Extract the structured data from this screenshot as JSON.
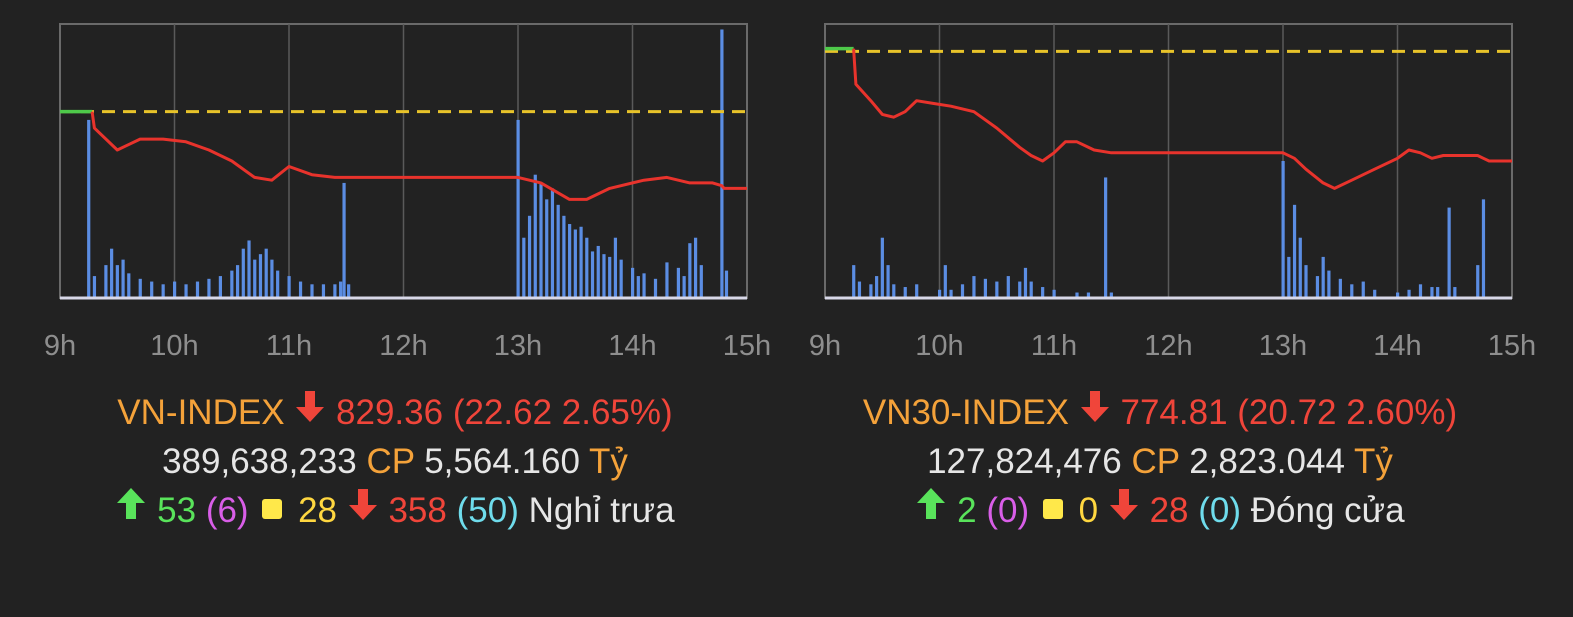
{
  "colors": {
    "background": "#222222",
    "price_line": "#e8332c",
    "reference_line": "#e8c32a",
    "opening_segment": "#4ec94a",
    "volume_bars": "#5b8de3",
    "grid": "#6a6a6a",
    "up": "#59e35b",
    "down": "#f0453a",
    "index_name": "#f4a23a"
  },
  "panels": [
    {
      "index": {
        "name": "VN-INDEX",
        "value": "829.36",
        "change": "(22.62 2.65%)",
        "volume": "389,638,233",
        "volume_unit": "CP",
        "turnover": "5,564.160",
        "turnover_unit": "Tỷ",
        "advancers": "53",
        "advancers_ceiling": "(6)",
        "unchanged": "28",
        "decliners": "358",
        "decliners_floor": "(50)",
        "status": "Nghỉ trưa"
      },
      "chart_data": {
        "type": "line",
        "x_ticks": [
          "9h",
          "10h",
          "11h",
          "12h",
          "13h",
          "14h",
          "15h"
        ],
        "x_range": [
          9,
          15
        ],
        "y_range_relative": [
          0,
          1
        ],
        "grid": true,
        "reference": 0.68,
        "price": [
          [
            9.0,
            0.68
          ],
          [
            9.28,
            0.68
          ],
          [
            9.3,
            0.62
          ],
          [
            9.5,
            0.54
          ],
          [
            9.7,
            0.58
          ],
          [
            9.9,
            0.58
          ],
          [
            10.1,
            0.57
          ],
          [
            10.3,
            0.54
          ],
          [
            10.5,
            0.5
          ],
          [
            10.7,
            0.44
          ],
          [
            10.85,
            0.43
          ],
          [
            11.0,
            0.48
          ],
          [
            11.2,
            0.45
          ],
          [
            11.4,
            0.44
          ],
          [
            11.5,
            0.44
          ],
          [
            13.0,
            0.44
          ],
          [
            13.2,
            0.42
          ],
          [
            13.45,
            0.36
          ],
          [
            13.6,
            0.36
          ],
          [
            13.8,
            0.4
          ],
          [
            14.1,
            0.43
          ],
          [
            14.3,
            0.44
          ],
          [
            14.5,
            0.42
          ],
          [
            14.7,
            0.42
          ],
          [
            14.78,
            0.41
          ],
          [
            14.8,
            0.4
          ],
          [
            15.0,
            0.4
          ]
        ],
        "volume": [
          [
            9.25,
            0.65
          ],
          [
            9.3,
            0.08
          ],
          [
            9.4,
            0.12
          ],
          [
            9.45,
            0.18
          ],
          [
            9.5,
            0.12
          ],
          [
            9.55,
            0.14
          ],
          [
            9.6,
            0.09
          ],
          [
            9.7,
            0.07
          ],
          [
            9.8,
            0.06
          ],
          [
            9.9,
            0.05
          ],
          [
            10.0,
            0.06
          ],
          [
            10.1,
            0.05
          ],
          [
            10.2,
            0.06
          ],
          [
            10.3,
            0.07
          ],
          [
            10.4,
            0.08
          ],
          [
            10.5,
            0.1
          ],
          [
            10.55,
            0.12
          ],
          [
            10.6,
            0.18
          ],
          [
            10.65,
            0.21
          ],
          [
            10.7,
            0.14
          ],
          [
            10.75,
            0.16
          ],
          [
            10.8,
            0.18
          ],
          [
            10.85,
            0.14
          ],
          [
            10.9,
            0.1
          ],
          [
            11.0,
            0.08
          ],
          [
            11.1,
            0.06
          ],
          [
            11.2,
            0.05
          ],
          [
            11.3,
            0.05
          ],
          [
            11.4,
            0.05
          ],
          [
            11.45,
            0.06
          ],
          [
            11.48,
            0.42
          ],
          [
            11.52,
            0.05
          ],
          [
            13.0,
            0.65
          ],
          [
            13.05,
            0.22
          ],
          [
            13.1,
            0.3
          ],
          [
            13.15,
            0.45
          ],
          [
            13.2,
            0.42
          ],
          [
            13.25,
            0.36
          ],
          [
            13.3,
            0.4
          ],
          [
            13.35,
            0.34
          ],
          [
            13.4,
            0.3
          ],
          [
            13.45,
            0.27
          ],
          [
            13.5,
            0.25
          ],
          [
            13.55,
            0.26
          ],
          [
            13.6,
            0.22
          ],
          [
            13.65,
            0.17
          ],
          [
            13.7,
            0.19
          ],
          [
            13.75,
            0.16
          ],
          [
            13.8,
            0.15
          ],
          [
            13.85,
            0.22
          ],
          [
            13.9,
            0.14
          ],
          [
            14.0,
            0.11
          ],
          [
            14.05,
            0.08
          ],
          [
            14.1,
            0.09
          ],
          [
            14.2,
            0.07
          ],
          [
            14.3,
            0.13
          ],
          [
            14.4,
            0.11
          ],
          [
            14.45,
            0.08
          ],
          [
            14.5,
            0.2
          ],
          [
            14.55,
            0.22
          ],
          [
            14.6,
            0.12
          ],
          [
            14.78,
            0.98
          ],
          [
            14.82,
            0.1
          ]
        ]
      }
    },
    {
      "index": {
        "name": "VN30-INDEX",
        "value": "774.81",
        "change": "(20.72 2.60%)",
        "volume": "127,824,476",
        "volume_unit": "CP",
        "turnover": "2,823.044",
        "turnover_unit": "Tỷ",
        "advancers": "2",
        "advancers_ceiling": "(0)",
        "unchanged": "0",
        "decliners": "28",
        "decliners_floor": "(0)",
        "status": "Đóng cửa"
      },
      "chart_data": {
        "type": "line",
        "x_ticks": [
          "9h",
          "10h",
          "11h",
          "12h",
          "13h",
          "14h",
          "15h"
        ],
        "x_range": [
          9,
          15
        ],
        "y_range_relative": [
          0,
          1
        ],
        "grid": true,
        "reference": 0.9,
        "price": [
          [
            9.0,
            0.91
          ],
          [
            9.25,
            0.91
          ],
          [
            9.27,
            0.78
          ],
          [
            9.4,
            0.72
          ],
          [
            9.5,
            0.67
          ],
          [
            9.6,
            0.66
          ],
          [
            9.7,
            0.68
          ],
          [
            9.8,
            0.72
          ],
          [
            9.95,
            0.71
          ],
          [
            10.1,
            0.7
          ],
          [
            10.3,
            0.68
          ],
          [
            10.5,
            0.62
          ],
          [
            10.7,
            0.55
          ],
          [
            10.8,
            0.52
          ],
          [
            10.9,
            0.5
          ],
          [
            11.0,
            0.53
          ],
          [
            11.1,
            0.57
          ],
          [
            11.2,
            0.57
          ],
          [
            11.35,
            0.54
          ],
          [
            11.5,
            0.53
          ],
          [
            13.0,
            0.53
          ],
          [
            13.1,
            0.51
          ],
          [
            13.2,
            0.47
          ],
          [
            13.35,
            0.42
          ],
          [
            13.45,
            0.4
          ],
          [
            13.6,
            0.43
          ],
          [
            13.8,
            0.47
          ],
          [
            14.0,
            0.51
          ],
          [
            14.1,
            0.54
          ],
          [
            14.2,
            0.53
          ],
          [
            14.3,
            0.51
          ],
          [
            14.4,
            0.52
          ],
          [
            14.7,
            0.52
          ],
          [
            14.75,
            0.51
          ],
          [
            14.8,
            0.5
          ],
          [
            15.0,
            0.5
          ]
        ],
        "volume": [
          [
            9.25,
            0.12
          ],
          [
            9.3,
            0.06
          ],
          [
            9.4,
            0.05
          ],
          [
            9.45,
            0.08
          ],
          [
            9.5,
            0.22
          ],
          [
            9.55,
            0.12
          ],
          [
            9.6,
            0.05
          ],
          [
            9.7,
            0.04
          ],
          [
            9.8,
            0.05
          ],
          [
            10.0,
            0.03
          ],
          [
            10.05,
            0.12
          ],
          [
            10.1,
            0.03
          ],
          [
            10.2,
            0.05
          ],
          [
            10.3,
            0.08
          ],
          [
            10.4,
            0.07
          ],
          [
            10.5,
            0.06
          ],
          [
            10.6,
            0.08
          ],
          [
            10.7,
            0.06
          ],
          [
            10.75,
            0.11
          ],
          [
            10.8,
            0.06
          ],
          [
            10.9,
            0.04
          ],
          [
            11.0,
            0.03
          ],
          [
            11.2,
            0.02
          ],
          [
            11.3,
            0.02
          ],
          [
            11.45,
            0.44
          ],
          [
            11.5,
            0.02
          ],
          [
            13.0,
            0.5
          ],
          [
            13.05,
            0.15
          ],
          [
            13.1,
            0.34
          ],
          [
            13.15,
            0.22
          ],
          [
            13.2,
            0.12
          ],
          [
            13.3,
            0.08
          ],
          [
            13.35,
            0.15
          ],
          [
            13.4,
            0.1
          ],
          [
            13.5,
            0.07
          ],
          [
            13.6,
            0.05
          ],
          [
            13.7,
            0.06
          ],
          [
            13.8,
            0.03
          ],
          [
            14.0,
            0.02
          ],
          [
            14.1,
            0.03
          ],
          [
            14.2,
            0.05
          ],
          [
            14.3,
            0.04
          ],
          [
            14.35,
            0.04
          ],
          [
            14.45,
            0.33
          ],
          [
            14.5,
            0.04
          ],
          [
            14.7,
            0.12
          ],
          [
            14.75,
            0.36
          ]
        ]
      }
    }
  ]
}
